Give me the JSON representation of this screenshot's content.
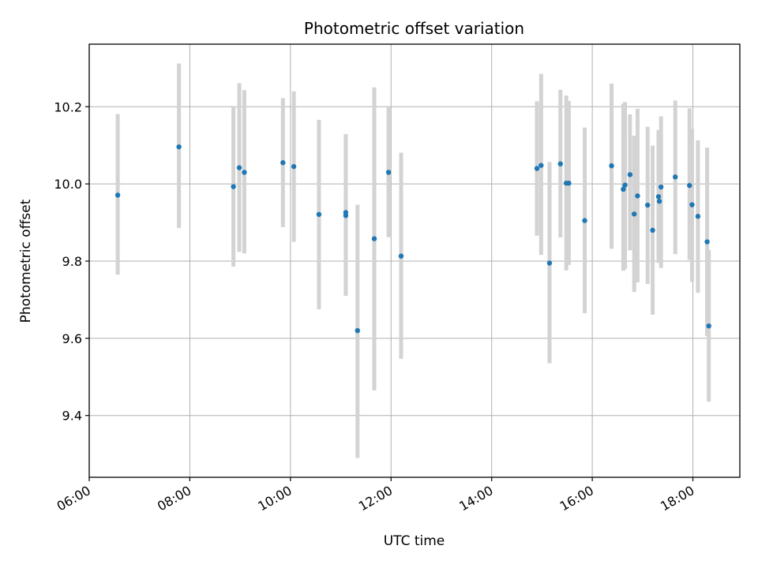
{
  "chart_data": {
    "type": "scatter",
    "title": "Photometric offset variation",
    "xlabel": "UTC time",
    "ylabel": "Photometric offset",
    "xlim": [
      "06:00",
      "18:56"
    ],
    "ylim": [
      9.24,
      10.362
    ],
    "x_ticks": [
      "06:00",
      "08:00",
      "10:00",
      "12:00",
      "14:00",
      "16:00",
      "18:00"
    ],
    "y_ticks": [
      "9.4",
      "9.6",
      "9.8",
      "10.0",
      "10.2"
    ],
    "grid": true,
    "point_color": "#1f77b4",
    "errorbar_color": "#d3d3d3",
    "points": [
      {
        "x": "06:34",
        "y": 9.971,
        "err_low": 9.765,
        "err_high": 10.181
      },
      {
        "x": "07:47",
        "y": 10.096,
        "err_low": 9.886,
        "err_high": 10.312
      },
      {
        "x": "08:52",
        "y": 9.993,
        "err_low": 9.786,
        "err_high": 10.2
      },
      {
        "x": "08:59",
        "y": 10.042,
        "err_low": 9.824,
        "err_high": 10.261
      },
      {
        "x": "09:05",
        "y": 10.03,
        "err_low": 9.82,
        "err_high": 10.243
      },
      {
        "x": "09:51",
        "y": 10.055,
        "err_low": 9.888,
        "err_high": 10.222
      },
      {
        "x": "10:04",
        "y": 10.045,
        "err_low": 9.85,
        "err_high": 10.24
      },
      {
        "x": "10:34",
        "y": 9.921,
        "err_low": 9.675,
        "err_high": 10.166
      },
      {
        "x": "11:06",
        "y": 9.926,
        "err_low": 9.71,
        "err_high": 10.129
      },
      {
        "x": "11:06",
        "y": 9.918
      },
      {
        "x": "11:20",
        "y": 9.62,
        "err_low": 9.29,
        "err_high": 9.946
      },
      {
        "x": "11:40",
        "y": 9.858,
        "err_low": 9.465,
        "err_high": 10.25
      },
      {
        "x": "11:57",
        "y": 10.03,
        "err_low": 9.862,
        "err_high": 10.198
      },
      {
        "x": "12:12",
        "y": 9.813,
        "err_low": 9.547,
        "err_high": 10.081
      },
      {
        "x": "14:54",
        "y": 10.04,
        "err_low": 9.866,
        "err_high": 10.214
      },
      {
        "x": "14:59",
        "y": 10.048,
        "err_low": 9.816,
        "err_high": 10.285
      },
      {
        "x": "15:09",
        "y": 9.795,
        "err_low": 9.535,
        "err_high": 10.057
      },
      {
        "x": "15:22",
        "y": 10.052,
        "err_low": 9.861,
        "err_high": 10.244
      },
      {
        "x": "15:29",
        "y": 10.002,
        "err_low": 9.776,
        "err_high": 10.229
      },
      {
        "x": "15:32",
        "y": 10.002,
        "err_low": 9.79,
        "err_high": 10.215
      },
      {
        "x": "15:51",
        "y": 9.905,
        "err_low": 9.665,
        "err_high": 10.146
      },
      {
        "x": "16:23",
        "y": 10.047,
        "err_low": 9.832,
        "err_high": 10.26
      },
      {
        "x": "16:37",
        "y": 9.986,
        "err_low": 9.775,
        "err_high": 10.208
      },
      {
        "x": "16:39",
        "y": 9.997,
        "err_low": 9.78,
        "err_high": 10.212
      },
      {
        "x": "16:45",
        "y": 10.024,
        "err_low": 9.828,
        "err_high": 10.18
      },
      {
        "x": "16:50",
        "y": 9.922,
        "err_low": 9.72,
        "err_high": 10.125
      },
      {
        "x": "16:54",
        "y": 9.969,
        "err_low": 9.745,
        "err_high": 10.195
      },
      {
        "x": "17:06",
        "y": 9.945,
        "err_low": 9.741,
        "err_high": 10.148
      },
      {
        "x": "17:12",
        "y": 9.88,
        "err_low": 9.661,
        "err_high": 10.099
      },
      {
        "x": "17:19",
        "y": 9.967,
        "err_low": 9.795,
        "err_high": 10.14
      },
      {
        "x": "17:20",
        "y": 9.955
      },
      {
        "x": "17:22",
        "y": 9.992,
        "err_low": 9.782,
        "err_high": 10.175
      },
      {
        "x": "17:39",
        "y": 10.018,
        "err_low": 9.818,
        "err_high": 10.216
      },
      {
        "x": "17:56",
        "y": 9.996,
        "err_low": 9.803,
        "err_high": 10.196
      },
      {
        "x": "17:59",
        "y": 9.946,
        "err_low": 9.746,
        "err_high": 10.143
      },
      {
        "x": "18:06",
        "y": 9.916,
        "err_low": 9.718,
        "err_high": 10.113
      },
      {
        "x": "18:17",
        "y": 9.85,
        "err_low": 9.606,
        "err_high": 10.094
      },
      {
        "x": "18:19",
        "y": 9.632,
        "err_low": 9.436,
        "err_high": 9.829
      }
    ]
  }
}
